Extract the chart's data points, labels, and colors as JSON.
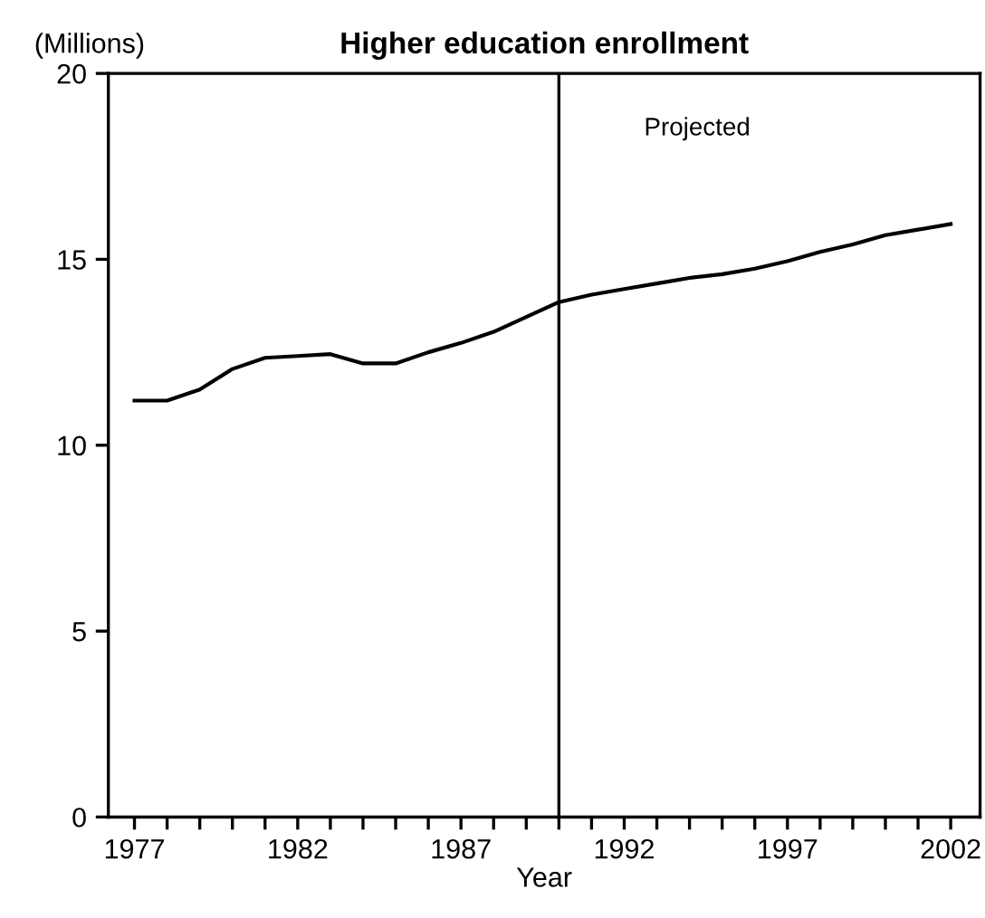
{
  "chart_data": {
    "type": "line",
    "title": "Higher education enrollment",
    "xlabel": "Year",
    "ylabel": "(Millions)",
    "x": [
      1977,
      1978,
      1979,
      1980,
      1981,
      1982,
      1983,
      1984,
      1985,
      1986,
      1987,
      1988,
      1989,
      1990,
      1991,
      1992,
      1993,
      1994,
      1995,
      1996,
      1997,
      1998,
      1999,
      2000,
      2001,
      2002
    ],
    "series": [
      {
        "color": "#000000",
        "values": [
          11.2,
          11.2,
          11.5,
          12.05,
          12.35,
          12.4,
          12.45,
          12.2,
          12.2,
          12.5,
          12.75,
          13.05,
          13.45,
          13.85,
          14.05,
          14.2,
          14.35,
          14.5,
          14.6,
          14.75,
          14.95,
          15.2,
          15.4,
          15.65,
          15.8,
          15.95
        ]
      }
    ],
    "xlim": [
      1976.2,
      2002.9
    ],
    "ylim": [
      0,
      20
    ],
    "xticks": [
      1977,
      {
        "value": 1978,
        "label": null
      },
      {
        "value": 1979,
        "label": null
      },
      {
        "value": 1980,
        "label": null
      },
      {
        "value": 1981,
        "label": null
      },
      1982,
      {
        "value": 1983,
        "label": null
      },
      {
        "value": 1984,
        "label": null
      },
      {
        "value": 1985,
        "label": null
      },
      {
        "value": 1986,
        "label": null
      },
      1987,
      {
        "value": 1988,
        "label": null
      },
      {
        "value": 1989,
        "label": null
      },
      {
        "value": 1990,
        "label": null
      },
      {
        "value": 1991,
        "label": null
      },
      1992,
      {
        "value": 1993,
        "label": null
      },
      {
        "value": 1994,
        "label": null
      },
      {
        "value": 1995,
        "label": null
      },
      {
        "value": 1996,
        "label": null
      },
      1997,
      {
        "value": 1998,
        "label": null
      },
      {
        "value": 1999,
        "label": null
      },
      {
        "value": 2000,
        "label": null
      },
      {
        "value": 2001,
        "label": null
      },
      2002
    ],
    "yticks": [
      0,
      5,
      10,
      15,
      20
    ],
    "ref_lines": [
      {
        "axis": "x",
        "value": 1990,
        "label": "Projected",
        "color": "#000000"
      }
    ],
    "grid": false,
    "legend": false,
    "marker": "none",
    "line_style": "solid"
  }
}
